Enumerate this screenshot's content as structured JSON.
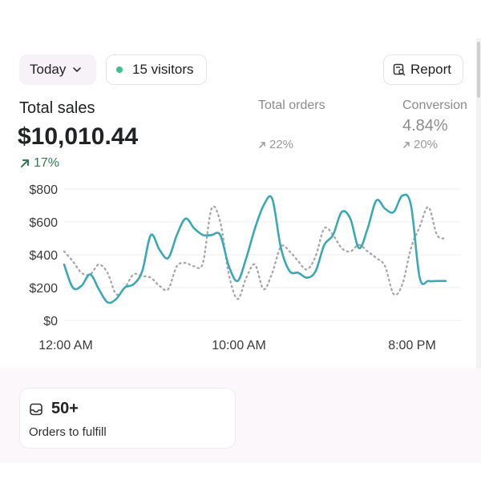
{
  "toolbar": {
    "date_label": "Today",
    "visitors_label": "15 visitors",
    "report_label": "Report"
  },
  "metrics": {
    "total_sales": {
      "label": "Total sales",
      "value": "$10,010.44",
      "change": "17%"
    },
    "total_orders": {
      "label": "Total orders",
      "change": "22%"
    },
    "conversion": {
      "label": "Conversion",
      "value": "4.84%",
      "change": "20%"
    }
  },
  "colors": {
    "accent_series": "#3aa9b5",
    "compare_series": "#a9a9a9",
    "positive": "#2f7d4f",
    "visitor_dot": "#3ec28f"
  },
  "chart_data": {
    "type": "line",
    "y_ticks": [
      "$800",
      "$600",
      "$400",
      "$200",
      "$0"
    ],
    "ylim": [
      0,
      800
    ],
    "x_ticks": [
      "12:00 AM",
      "10:00 AM",
      "8:00 PM"
    ],
    "grid": true,
    "series": [
      {
        "style": "solid",
        "x": [
          0,
          0.5,
          1,
          1.5,
          2,
          2.5,
          3,
          3.5,
          4,
          4.5,
          5,
          5.5,
          6,
          6.5,
          7,
          7.5,
          8,
          8.5,
          9,
          9.5,
          10,
          10.5,
          11,
          11.5,
          12,
          12.5,
          13,
          13.5,
          14,
          14.5,
          15,
          15.5,
          16,
          16.5,
          17,
          17.5,
          18,
          18.5,
          19,
          19.5,
          20,
          20.5,
          21,
          21.5,
          22
        ],
        "values": [
          340,
          200,
          210,
          280,
          190,
          110,
          130,
          200,
          220,
          300,
          520,
          430,
          380,
          520,
          620,
          560,
          520,
          520,
          520,
          330,
          240,
          380,
          560,
          700,
          740,
          440,
          300,
          290,
          260,
          300,
          460,
          520,
          660,
          620,
          440,
          560,
          730,
          680,
          660,
          760,
          700,
          260,
          240,
          240,
          240
        ]
      },
      {
        "style": "dotted",
        "x": [
          0,
          0.5,
          1,
          1.5,
          2,
          2.5,
          3,
          3.5,
          4,
          4.5,
          5,
          5.5,
          6,
          6.5,
          7,
          7.5,
          8,
          8.5,
          9,
          9.5,
          10,
          10.5,
          11,
          11.5,
          12,
          12.5,
          13,
          13.5,
          14,
          14.5,
          15,
          15.5,
          16,
          16.5,
          17,
          17.5,
          18,
          18.5,
          19,
          19.5,
          20,
          20.5,
          21,
          21.5,
          22
        ],
        "values": [
          420,
          360,
          290,
          280,
          340,
          290,
          160,
          200,
          280,
          270,
          260,
          210,
          190,
          330,
          350,
          330,
          350,
          680,
          600,
          280,
          130,
          260,
          340,
          190,
          290,
          450,
          420,
          360,
          310,
          390,
          560,
          520,
          440,
          420,
          460,
          420,
          380,
          330,
          160,
          220,
          440,
          570,
          690,
          520,
          500
        ]
      }
    ]
  },
  "fulfill": {
    "count": "50+",
    "label": "Orders to fulfill"
  }
}
